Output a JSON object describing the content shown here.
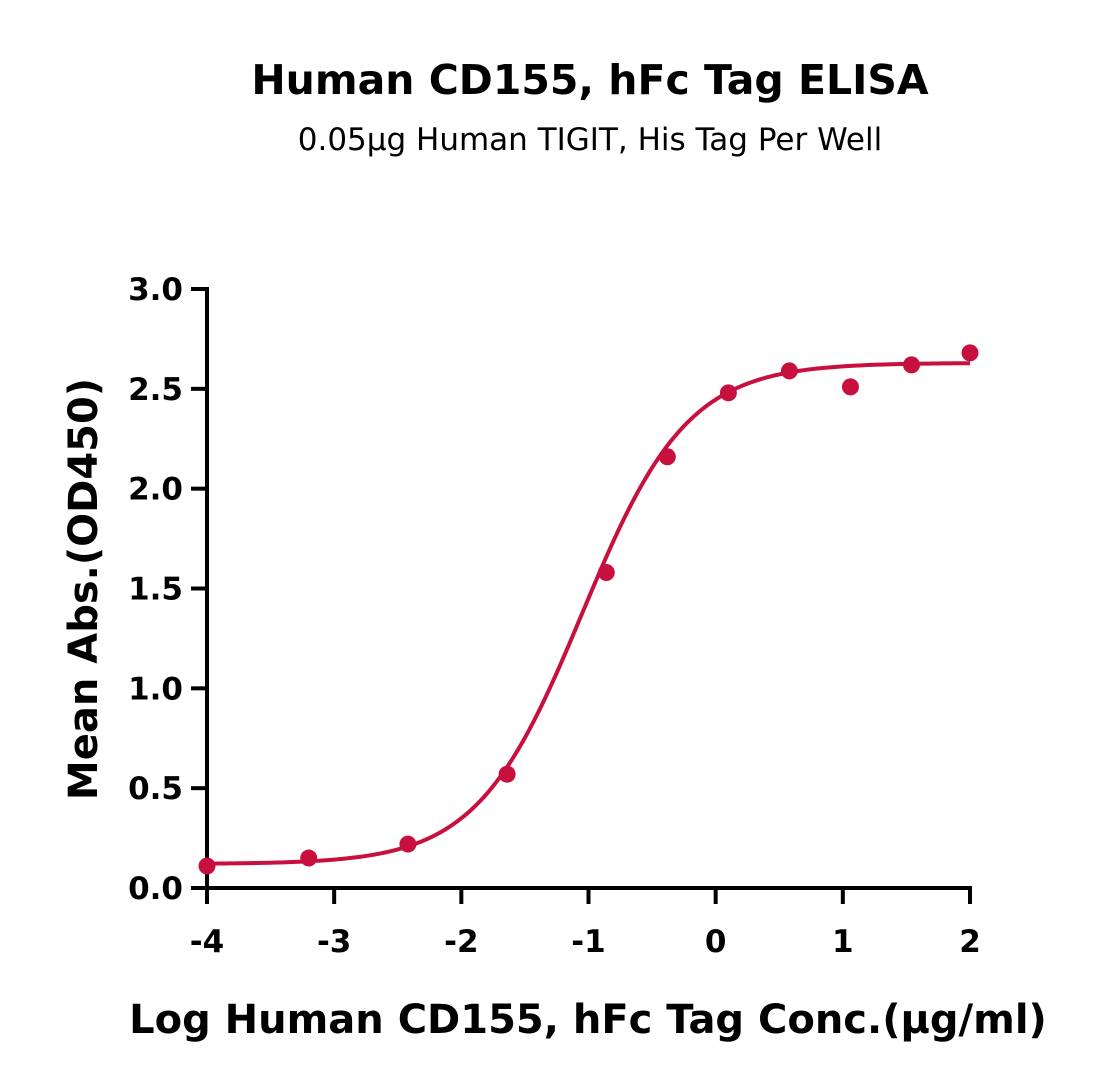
{
  "chart_data": {
    "type": "scatter",
    "title": "Human CD155, hFc Tag ELISA",
    "subtitle": "0.05μg Human TIGIT, His Tag Per Well",
    "xlabel": "Log Human CD155, hFc Tag Conc.(μg/ml)",
    "ylabel": "Mean Abs.(OD450)",
    "xlim": [
      -4,
      2
    ],
    "ylim": [
      0,
      3.0
    ],
    "xticks": [
      "-4",
      "-3",
      "-2",
      "-1",
      "0",
      "1",
      "2"
    ],
    "yticks": [
      "0.0",
      "0.5",
      "1.0",
      "1.5",
      "2.0",
      "2.5",
      "3.0"
    ],
    "grid": false,
    "color": "#c8103e",
    "series": [
      {
        "points": [
          {
            "x": -4.0,
            "y": 0.11
          },
          {
            "x": -3.2,
            "y": 0.15
          },
          {
            "x": -2.42,
            "y": 0.22
          },
          {
            "x": -1.64,
            "y": 0.57
          },
          {
            "x": -0.86,
            "y": 1.58
          },
          {
            "x": -0.38,
            "y": 2.16
          },
          {
            "x": 0.1,
            "y": 2.48
          },
          {
            "x": 0.58,
            "y": 2.59
          },
          {
            "x": 1.06,
            "y": 2.51
          },
          {
            "x": 1.54,
            "y": 2.62
          },
          {
            "x": 2.0,
            "y": 2.68
          }
        ],
        "fit": {
          "model": "4PL",
          "bottom": 0.12,
          "top": 2.63,
          "logEC50": -1.05,
          "hill": 1.05
        }
      }
    ]
  }
}
